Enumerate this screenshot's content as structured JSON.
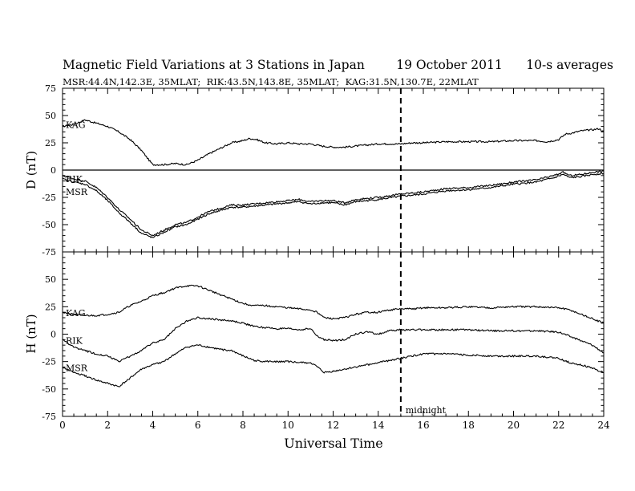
{
  "chart_data": [
    {
      "type": "line",
      "title": "Magnetic Field Variations at 3 Stations in Japan        19 October 2011      10-s averages",
      "subtitle": "MSR:44.4N,142.3E, 35MLAT;  RIK:43.5N,143.8E, 35MLAT;  KAG:31.5N,130.7E, 22MLAT",
      "ylabel": "D (nT)",
      "xlim": [
        0,
        24
      ],
      "ylim": [
        -75,
        75
      ],
      "yticks": [
        "75",
        "50",
        "25",
        "0",
        "-25",
        "-50",
        "-75"
      ],
      "grid": false,
      "series": [
        {
          "name": "KAG",
          "x": [
            0,
            0.5,
            1,
            1.5,
            2,
            2.5,
            3,
            3.5,
            3.8,
            4,
            4.5,
            5,
            5.5,
            6,
            6.5,
            7,
            7.5,
            8,
            8.3,
            8.6,
            9,
            9.5,
            10,
            10.5,
            11,
            11.5,
            12,
            12.5,
            13,
            13.5,
            14,
            14.5,
            15,
            15.5,
            16,
            17,
            18,
            19,
            20,
            21,
            21.5,
            22,
            22.3,
            22.6,
            23,
            23.5,
            23.8,
            24
          ],
          "y": [
            40,
            42,
            46,
            43,
            40,
            35,
            28,
            18,
            10,
            5,
            5,
            6,
            5,
            9,
            15,
            20,
            25,
            27,
            29,
            28,
            25,
            24,
            25,
            24,
            24,
            22,
            21,
            21,
            22,
            23,
            24,
            24,
            24,
            25,
            25,
            26,
            26,
            26,
            27,
            27,
            26,
            28,
            33,
            34,
            36,
            37,
            38,
            35
          ]
        },
        {
          "name": "RIK",
          "x": [
            0,
            0.5,
            1,
            1.5,
            2,
            2.5,
            3,
            3.5,
            4,
            4.5,
            5,
            5.5,
            6,
            6.5,
            7,
            7.5,
            8,
            9,
            10,
            10.5,
            11,
            11.5,
            12,
            12.5,
            13,
            14,
            15,
            16,
            17,
            18,
            19,
            20,
            21,
            21.8,
            22.2,
            22.5,
            23,
            23.5,
            24
          ],
          "y": [
            -5,
            -8,
            -10,
            -16,
            -25,
            -36,
            -45,
            -55,
            -60,
            -55,
            -50,
            -48,
            -43,
            -38,
            -35,
            -32,
            -32,
            -30,
            -28,
            -27,
            -29,
            -28,
            -28,
            -30,
            -27,
            -25,
            -22,
            -20,
            -17,
            -16,
            -14,
            -11,
            -9,
            -5,
            -2,
            -5,
            -4,
            -2,
            -1
          ]
        },
        {
          "name": "MSR",
          "x": [
            0,
            0.5,
            1,
            1.5,
            2,
            2.5,
            3,
            3.5,
            4,
            4.5,
            5,
            5.5,
            6,
            6.5,
            7,
            7.5,
            8,
            9,
            10,
            10.5,
            11,
            11.5,
            12,
            12.5,
            13,
            14,
            15,
            16,
            17,
            18,
            19,
            20,
            21,
            21.8,
            22.2,
            22.5,
            23,
            23.5,
            24
          ],
          "y": [
            -8,
            -11,
            -13,
            -19,
            -28,
            -39,
            -48,
            -58,
            -62,
            -57,
            -52,
            -50,
            -45,
            -40,
            -37,
            -34,
            -34,
            -32,
            -30,
            -29,
            -31,
            -30,
            -30,
            -32,
            -29,
            -27,
            -24,
            -22,
            -19,
            -18,
            -16,
            -13,
            -11,
            -7,
            -4,
            -7,
            -6,
            -4,
            -3
          ]
        }
      ]
    },
    {
      "type": "line",
      "xlabel": "Universal Time",
      "ylabel": "H (nT)",
      "xlim": [
        0,
        24
      ],
      "ylim": [
        -75,
        75
      ],
      "xticks": [
        "0",
        "2",
        "4",
        "6",
        "8",
        "10",
        "12",
        "14",
        "16",
        "18",
        "20",
        "22",
        "24"
      ],
      "yticks": [
        "50",
        "25",
        "0",
        "-25",
        "-50",
        "-75"
      ],
      "grid": false,
      "annotations": [
        {
          "text": "midnight",
          "x": 15
        }
      ],
      "series": [
        {
          "name": "KAG",
          "x": [
            0,
            0.5,
            1,
            1.5,
            2,
            2.5,
            3,
            3.5,
            4,
            4.5,
            5,
            5.5,
            6,
            6.5,
            7,
            7.5,
            8,
            8.5,
            9,
            9.5,
            10,
            10.5,
            11,
            11.3,
            11.6,
            12,
            12.5,
            13,
            13.5,
            14,
            14.5,
            15,
            15.5,
            16,
            17,
            18,
            19,
            20,
            21,
            22,
            22.5,
            23,
            23.5,
            24
          ],
          "y": [
            20,
            18,
            17,
            17,
            18,
            20,
            26,
            30,
            35,
            38,
            42,
            44,
            44,
            40,
            36,
            32,
            28,
            26,
            26,
            25,
            24,
            23,
            22,
            20,
            15,
            14,
            15,
            18,
            20,
            20,
            22,
            23,
            23,
            24,
            24,
            25,
            24,
            25,
            25,
            24,
            22,
            18,
            14,
            10
          ]
        },
        {
          "name": "RIK",
          "x": [
            0,
            0.5,
            1,
            1.5,
            2,
            2.5,
            3,
            3.5,
            4,
            4.5,
            5,
            5.5,
            6,
            6.5,
            7,
            7.5,
            8,
            8.5,
            9,
            9.5,
            10,
            10.5,
            11,
            11.3,
            11.6,
            12,
            12.5,
            13,
            13.5,
            14,
            14.5,
            15,
            15.5,
            16,
            17,
            18,
            19,
            20,
            21,
            22,
            22.5,
            23,
            23.5,
            24
          ],
          "y": [
            -5,
            -12,
            -15,
            -18,
            -20,
            -25,
            -20,
            -15,
            -8,
            -5,
            5,
            12,
            15,
            14,
            13,
            12,
            10,
            7,
            6,
            5,
            5,
            4,
            5,
            -2,
            -5,
            -6,
            -5,
            0,
            2,
            0,
            3,
            4,
            4,
            4,
            4,
            4,
            3,
            3,
            3,
            2,
            -2,
            -6,
            -10,
            -17
          ]
        },
        {
          "name": "MSR",
          "x": [
            0,
            0.5,
            1,
            1.5,
            2,
            2.5,
            3,
            3.5,
            4,
            4.5,
            5,
            5.5,
            6,
            6.5,
            7,
            7.5,
            8,
            8.5,
            9,
            9.5,
            10,
            10.5,
            11,
            11.3,
            11.6,
            12,
            12.5,
            13,
            13.5,
            14,
            14.5,
            15,
            15.5,
            16,
            17,
            18,
            19,
            20,
            21,
            22,
            22.5,
            23,
            23.5,
            24
          ],
          "y": [
            -30,
            -35,
            -38,
            -42,
            -45,
            -48,
            -40,
            -32,
            -28,
            -25,
            -18,
            -12,
            -10,
            -12,
            -14,
            -15,
            -20,
            -24,
            -25,
            -25,
            -25,
            -26,
            -26,
            -30,
            -35,
            -34,
            -32,
            -30,
            -28,
            -26,
            -24,
            -22,
            -20,
            -18,
            -18,
            -19,
            -20,
            -20,
            -20,
            -22,
            -26,
            -28,
            -31,
            -35
          ]
        }
      ]
    }
  ]
}
